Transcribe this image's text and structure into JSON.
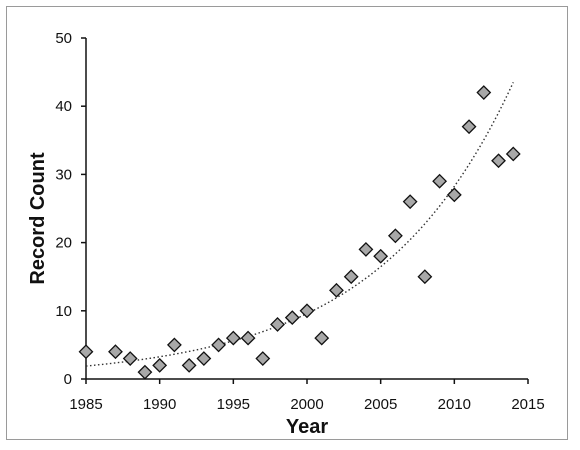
{
  "chart_data": {
    "type": "scatter",
    "title": "",
    "xlabel": "Year",
    "ylabel": "Record Count",
    "xlim": [
      1985,
      2015
    ],
    "ylim": [
      0,
      50
    ],
    "x_ticks": [
      1985,
      1990,
      1995,
      2000,
      2005,
      2010,
      2015
    ],
    "y_ticks": [
      0,
      10,
      20,
      30,
      40,
      50
    ],
    "grid": false,
    "legend": "none",
    "marker": "diamond",
    "marker_color": "#a8a8a8",
    "trendline": {
      "type": "exponential",
      "style": "dotted",
      "x_range": [
        1985,
        2014
      ],
      "start_value": 1.9,
      "end_value": 43.5
    },
    "series": [
      {
        "x": [
          1985,
          1987,
          1988,
          1989,
          1990,
          1991,
          1992,
          1993,
          1994,
          1995,
          1996,
          1997,
          1998,
          1999,
          2000,
          2001,
          2002,
          2003,
          2004,
          2005,
          2006,
          2007,
          2008,
          2009,
          2010,
          2011,
          2012,
          2013,
          2014
        ],
        "y": [
          4,
          4,
          3,
          1,
          2,
          5,
          2,
          3,
          5,
          6,
          6,
          3,
          8,
          9,
          10,
          6,
          13,
          15,
          19,
          18,
          21,
          26,
          15,
          29,
          27,
          37,
          42,
          32,
          33
        ]
      }
    ]
  }
}
